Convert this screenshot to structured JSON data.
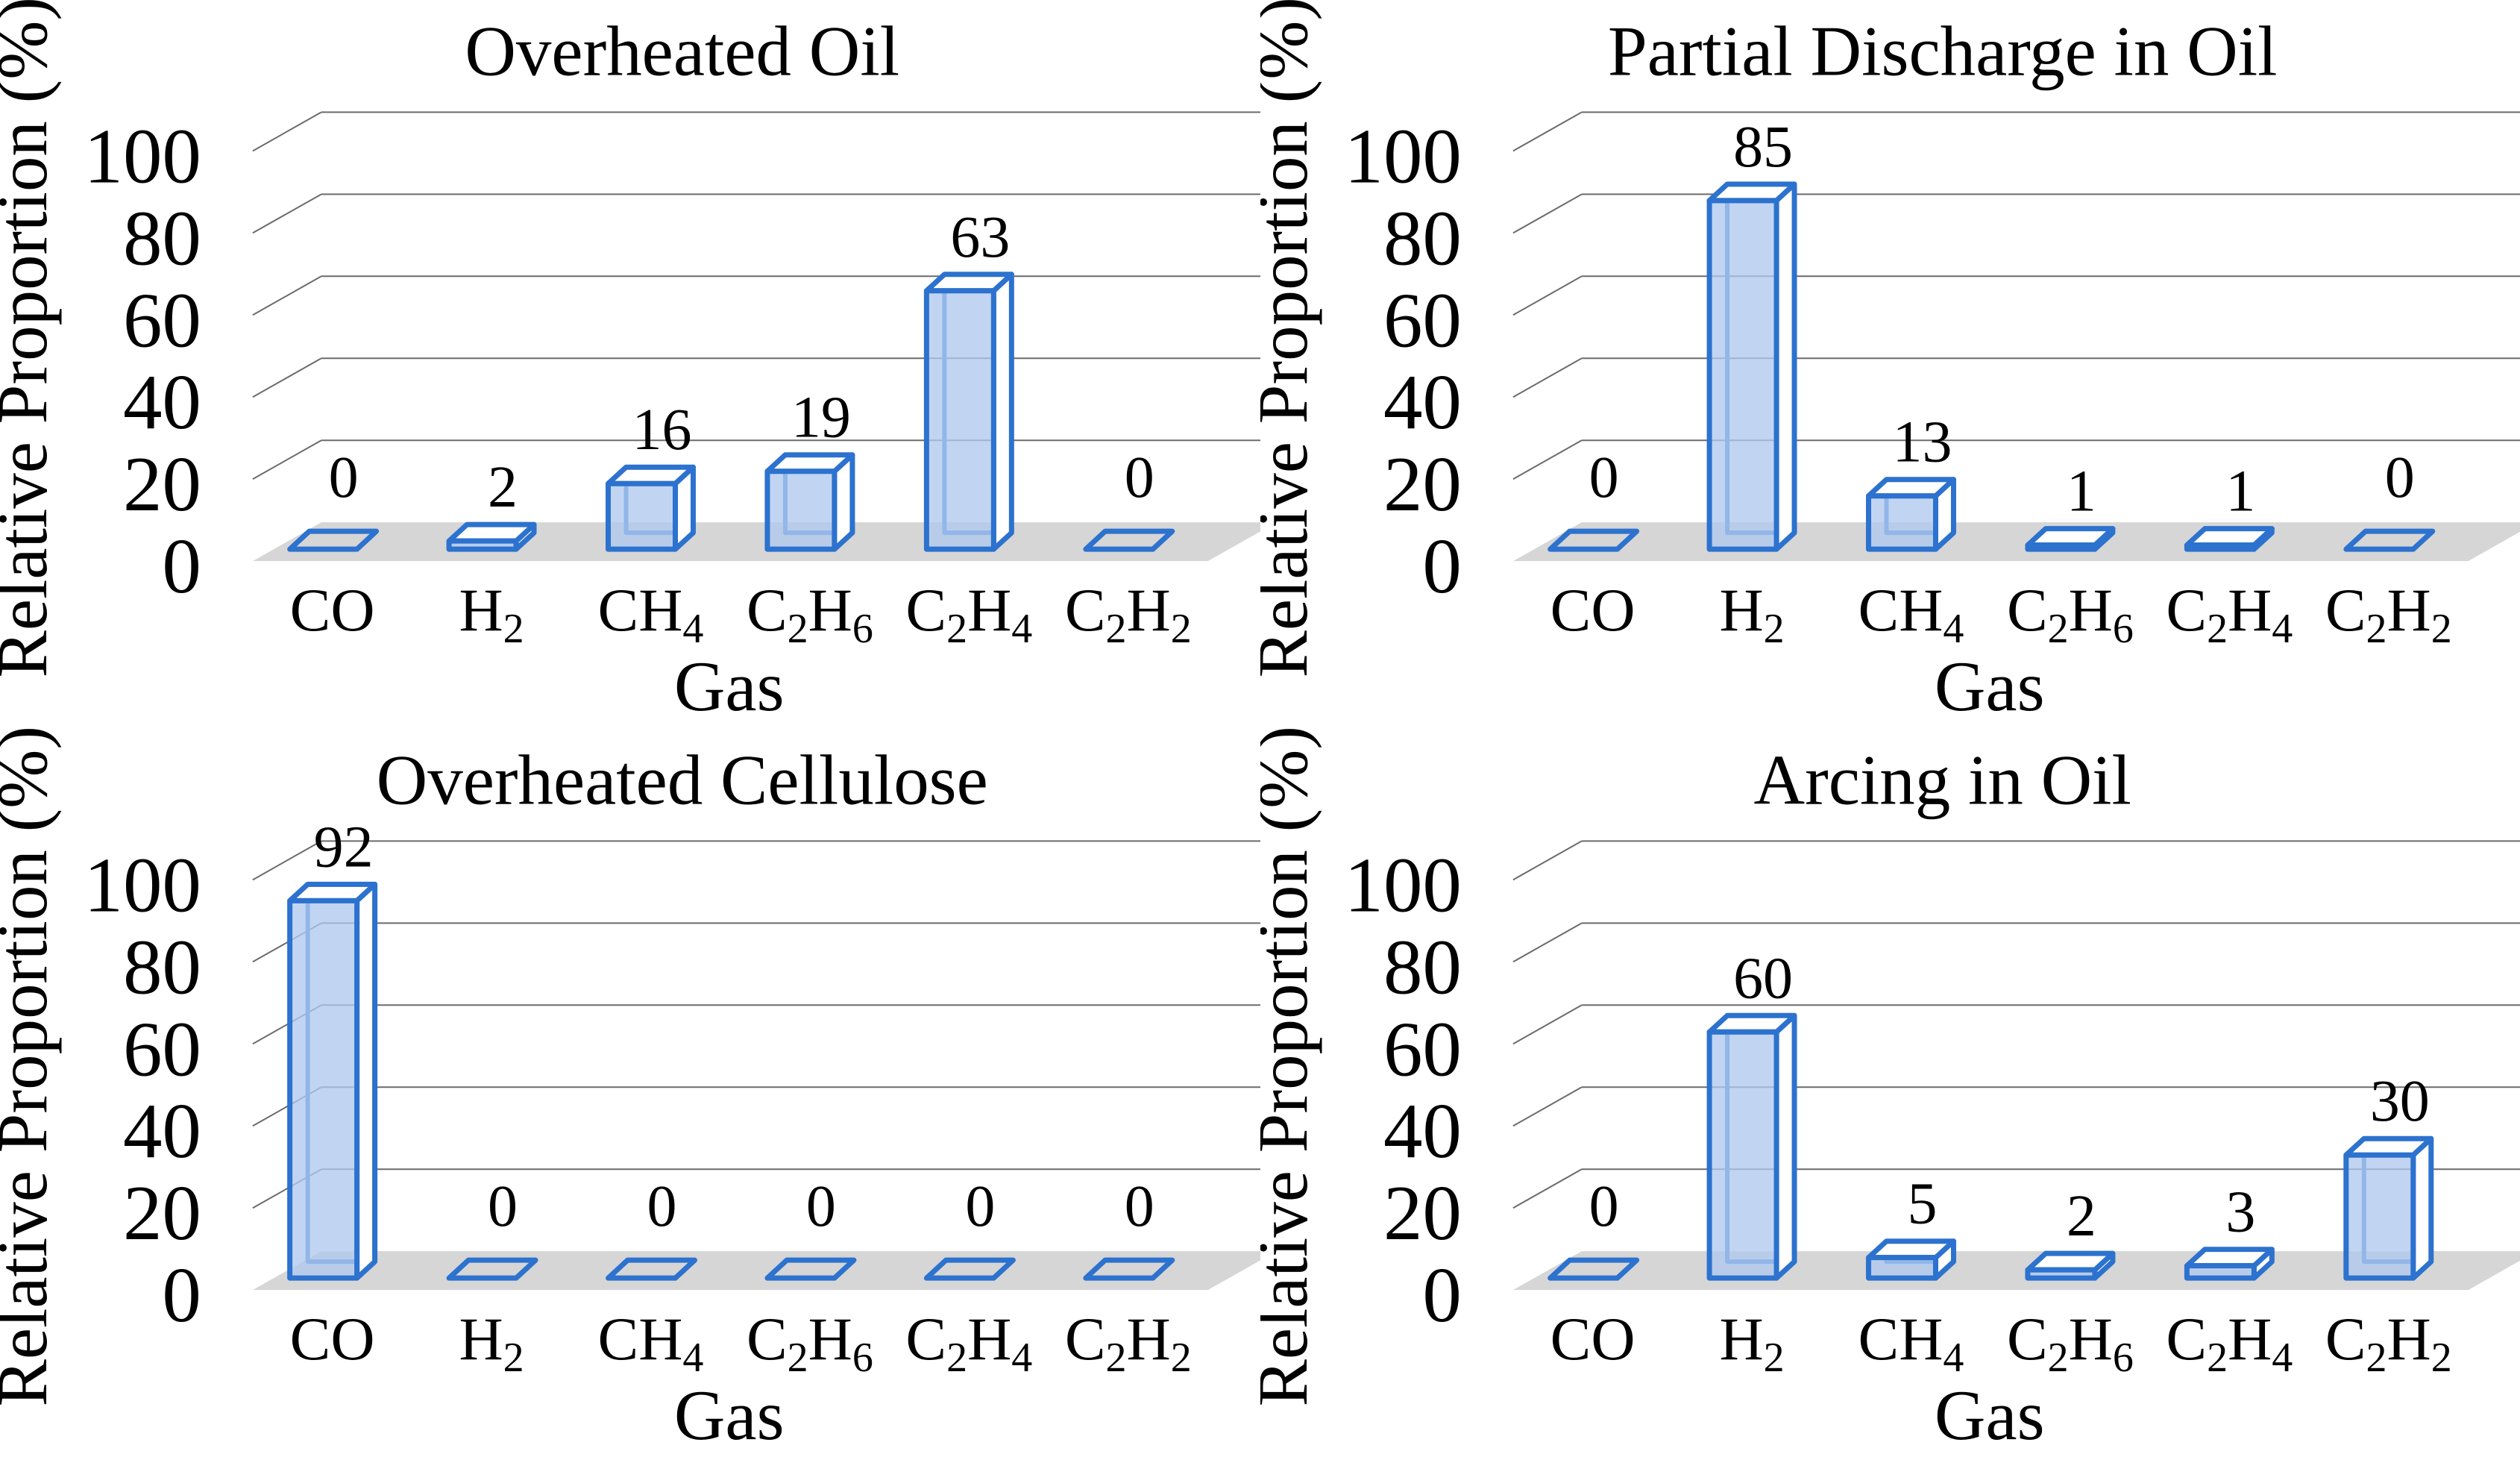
{
  "figure": {
    "layout": "2x2-grid",
    "background": "#ffffff"
  },
  "colors": {
    "bar_edge": "#2C72CE",
    "bar_fill": "#AFC9F0",
    "bar_fill_opacity": 0.78,
    "face_fill": "#FFFFFF",
    "floor": "#D6D6D6",
    "gridline": "#6B6B6B",
    "text": "#000000"
  },
  "shared_axes": {
    "ylabel": "Relative Proportion (%)",
    "xlabel": "Gas",
    "yticks": [
      0,
      20,
      40,
      60,
      80,
      100
    ],
    "ylim": [
      0,
      100
    ]
  },
  "categories_rich": [
    [
      {
        "t": "CO"
      }
    ],
    [
      {
        "t": "H"
      },
      {
        "sub": "2"
      }
    ],
    [
      {
        "t": "CH"
      },
      {
        "sub": "4"
      }
    ],
    [
      {
        "t": "C"
      },
      {
        "sub": "2"
      },
      {
        "t": "H"
      },
      {
        "sub": "6"
      }
    ],
    [
      {
        "t": "C"
      },
      {
        "sub": "2"
      },
      {
        "t": "H"
      },
      {
        "sub": "4"
      }
    ],
    [
      {
        "t": "C"
      },
      {
        "sub": "2"
      },
      {
        "t": "H"
      },
      {
        "sub": "2"
      }
    ]
  ],
  "chart_data": [
    {
      "type": "bar",
      "style": "3d-column",
      "title": "Overheated Oil",
      "xlabel": "Gas",
      "ylabel": "Relative Proportion (%)",
      "categories": [
        "CO",
        "H2",
        "CH4",
        "C2H6",
        "C2H4",
        "C2H2"
      ],
      "values": [
        0,
        2,
        16,
        19,
        63,
        0
      ],
      "value_labels": [
        "0",
        "2",
        "16",
        "19",
        "63",
        "0"
      ],
      "yticks": [
        0,
        20,
        40,
        60,
        80,
        100
      ],
      "ylim": [
        0,
        100
      ],
      "grid": true,
      "legend": "none"
    },
    {
      "type": "bar",
      "style": "3d-column",
      "title": "Partial Discharge in Oil",
      "xlabel": "Gas",
      "ylabel": "Relative Proportion (%)",
      "categories": [
        "CO",
        "H2",
        "CH4",
        "C2H6",
        "C2H4",
        "C2H2"
      ],
      "values": [
        0,
        85,
        13,
        1,
        1,
        0
      ],
      "value_labels": [
        "0",
        "85",
        "13",
        "1",
        "1",
        "0"
      ],
      "yticks": [
        0,
        20,
        40,
        60,
        80,
        100
      ],
      "ylim": [
        0,
        100
      ],
      "grid": true,
      "legend": "none"
    },
    {
      "type": "bar",
      "style": "3d-column",
      "title": "Overheated Cellulose",
      "xlabel": "Gas",
      "ylabel": "Relative Proportion (%)",
      "categories": [
        "CO",
        "H2",
        "CH4",
        "C2H6",
        "C2H4",
        "C2H2"
      ],
      "values": [
        92,
        0,
        0,
        0,
        0,
        0
      ],
      "value_labels": [
        "92",
        "0",
        "0",
        "0",
        "0",
        "0"
      ],
      "yticks": [
        0,
        20,
        40,
        60,
        80,
        100
      ],
      "ylim": [
        0,
        100
      ],
      "grid": true,
      "legend": "none"
    },
    {
      "type": "bar",
      "style": "3d-column",
      "title": "Arcing in Oil",
      "xlabel": "Gas",
      "ylabel": "Relative Proportion (%)",
      "categories": [
        "CO",
        "H2",
        "CH4",
        "C2H6",
        "C2H4",
        "C2H2"
      ],
      "values": [
        0,
        60,
        5,
        2,
        3,
        30
      ],
      "value_labels": [
        "0",
        "60",
        "5",
        "2",
        "3",
        "30"
      ],
      "yticks": [
        0,
        20,
        40,
        60,
        80,
        100
      ],
      "ylim": [
        0,
        100
      ],
      "grid": true,
      "legend": "none"
    }
  ]
}
